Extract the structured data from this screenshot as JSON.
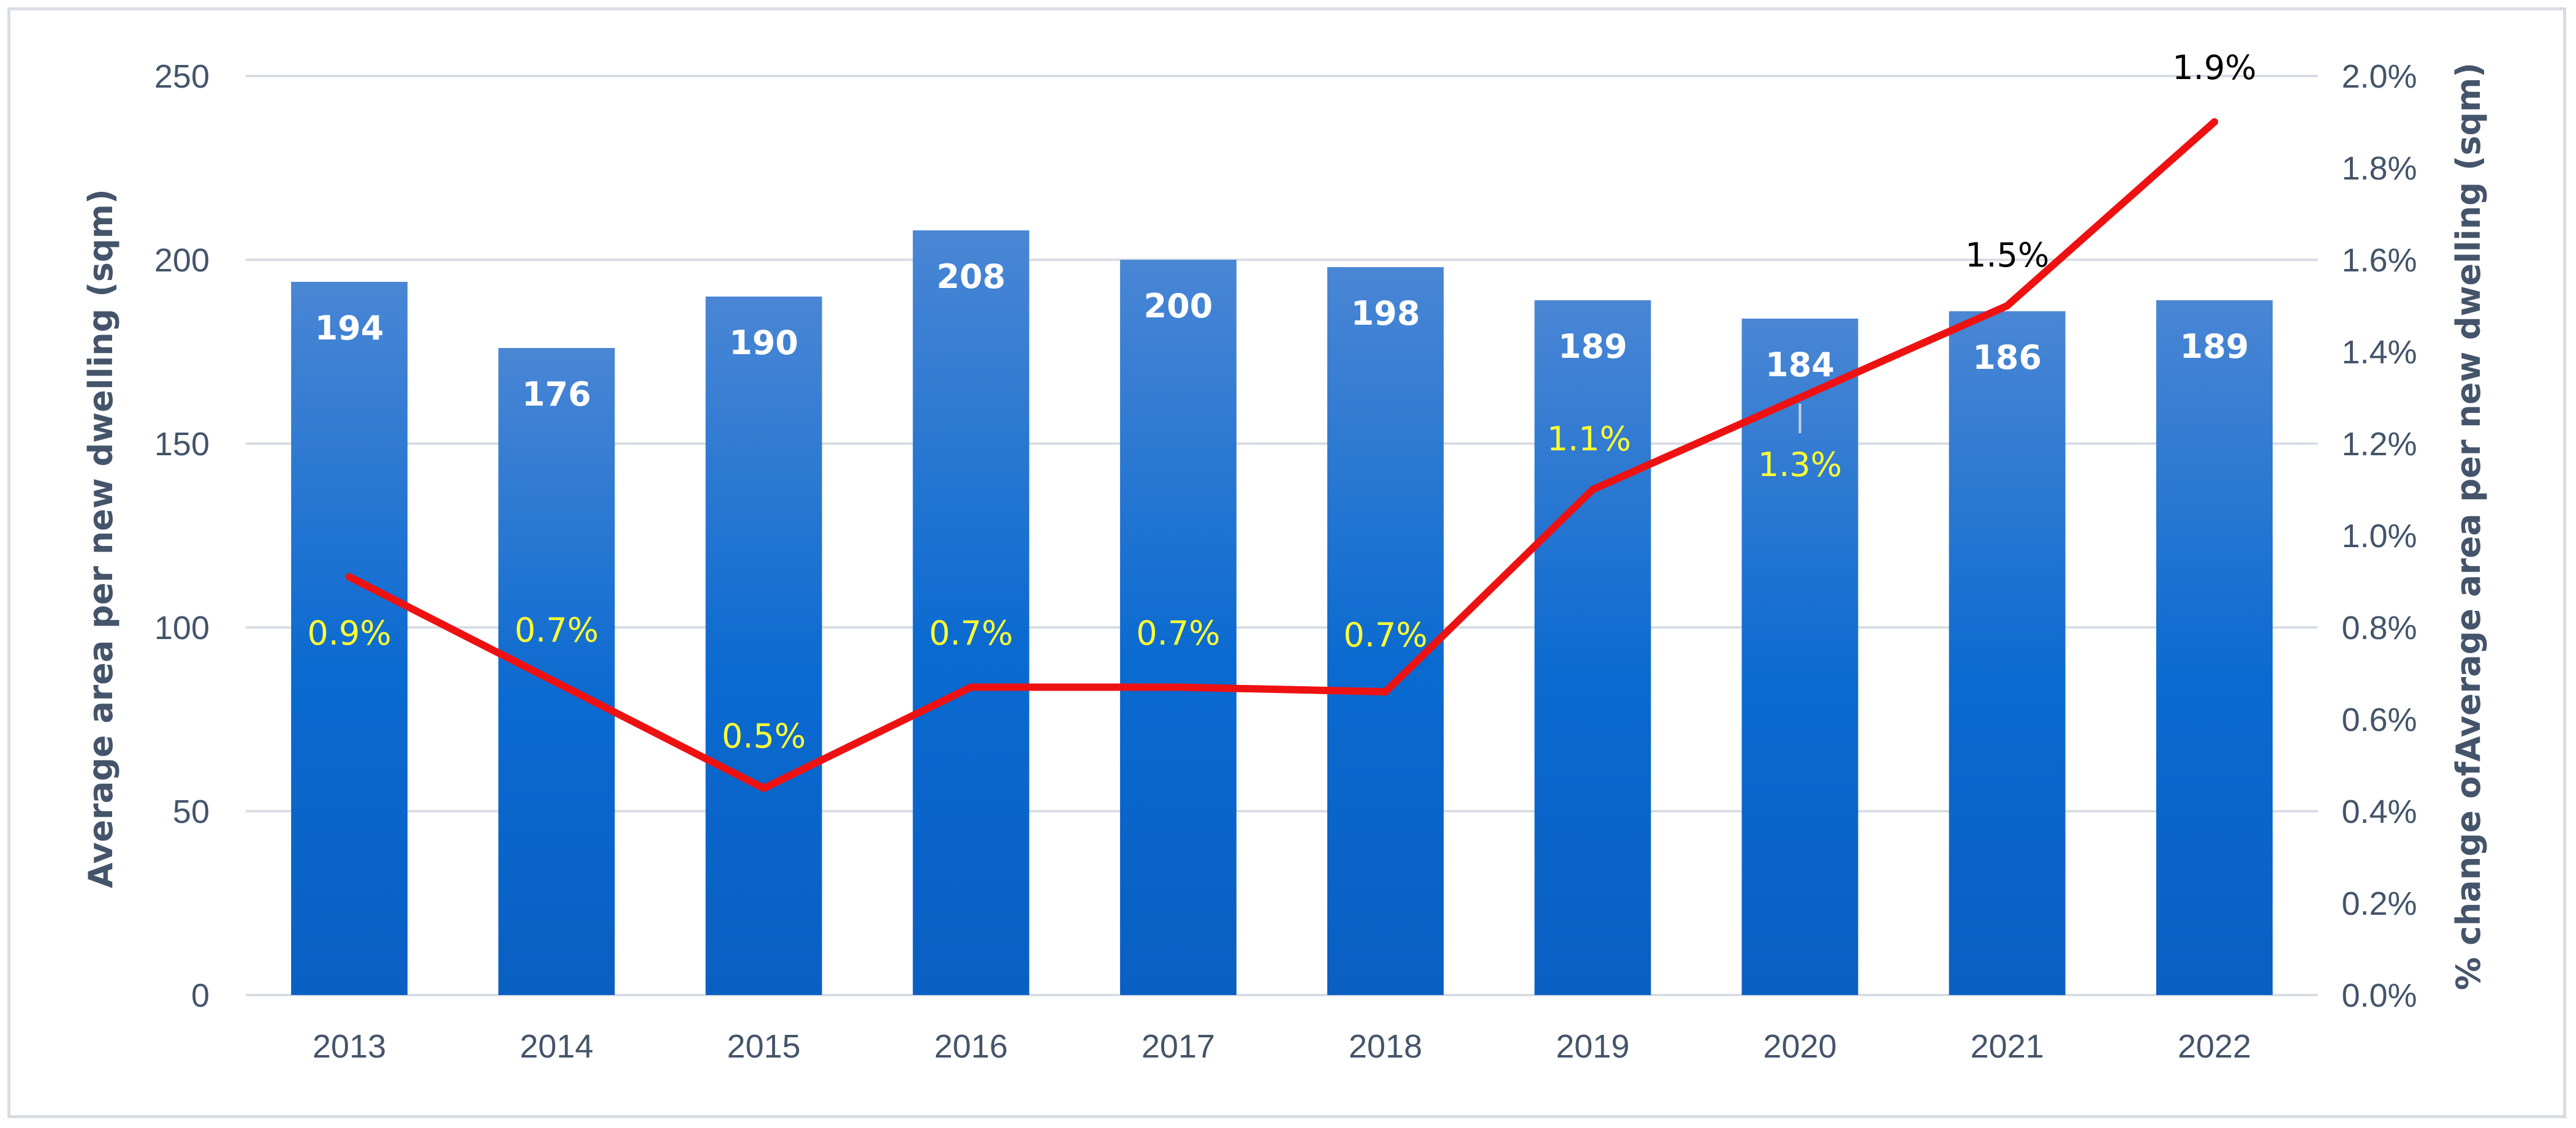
{
  "chart_data": {
    "type": "bar+line",
    "title": "",
    "categories": [
      "2013",
      "2014",
      "2015",
      "2016",
      "2017",
      "2018",
      "2019",
      "2020",
      "2021",
      "2022"
    ],
    "series": [
      {
        "name": "Average area per new dwelling (sqm)",
        "type": "bar",
        "axis": "left",
        "values": [
          194,
          176,
          190,
          208,
          200,
          198,
          189,
          184,
          186,
          189
        ],
        "labels": [
          "194",
          "176",
          "190",
          "208",
          "200",
          "198",
          "189",
          "184",
          "186",
          "189"
        ]
      },
      {
        "name": "% change of Average area per new dwelling (sqm)",
        "type": "line",
        "axis": "right",
        "values": [
          0.0091,
          0.0068,
          0.0045,
          0.0067,
          0.0067,
          0.0066,
          0.011,
          0.013,
          0.015,
          0.019
        ],
        "labels": [
          "0.9%",
          "0.7%",
          "0.5%",
          "0.7%",
          "0.7%",
          "0.7%",
          "1.1%",
          "1.3%",
          "1.5%",
          "1.9%"
        ],
        "label_colors": [
          "#ffff33",
          "#ffff33",
          "#ffff33",
          "#ffff33",
          "#ffff33",
          "#ffff33",
          "#ffff33",
          "#ffff33",
          "#000000",
          "#000000"
        ]
      }
    ],
    "y_left": {
      "label": "Average area per new dwelling (sqm)",
      "ylim": [
        0,
        250
      ],
      "ticks": [
        "0",
        "50",
        "100",
        "150",
        "200",
        "250"
      ]
    },
    "y_right": {
      "label": "% change ofAverage area per new dwelling (sqm)",
      "ylim": [
        0,
        0.02
      ],
      "ticks": [
        "0.0%",
        "0.2%",
        "0.4%",
        "0.6%",
        "0.8%",
        "1.0%",
        "1.2%",
        "1.4%",
        "1.6%",
        "1.8%",
        "2.0%"
      ]
    },
    "grid": true,
    "colors": {
      "bar_top": "#4a86d4",
      "bar_bottom": "#0a5fc2",
      "line": "#ee1111",
      "grid": "#d9dde3",
      "axis_text": "#44546a"
    }
  }
}
